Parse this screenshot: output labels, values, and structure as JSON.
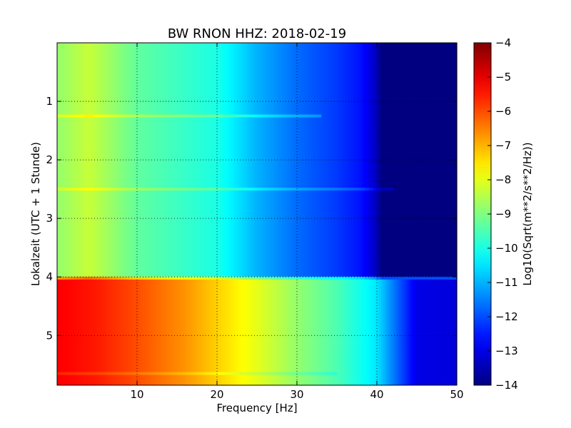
{
  "chart_data": {
    "type": "heatmap",
    "title": "BW RNON HHZ: 2018-02-19",
    "xlabel": "Frequency [Hz]",
    "ylabel": "Lokalzeit (UTC + 1 Stunde)",
    "xlim": [
      0,
      50
    ],
    "ylim": [
      5.85,
      0
    ],
    "x_ticks": [
      10,
      20,
      30,
      40,
      50
    ],
    "y_ticks": [
      1,
      2,
      3,
      4,
      5
    ],
    "grid": true,
    "colormap": "jet",
    "colorbar": {
      "label": "Log10(Sqrt(m**2/s**2/Hz))",
      "range": [
        -14,
        -4
      ],
      "ticks": [
        -4,
        -5,
        -6,
        -7,
        -8,
        -9,
        -10,
        -11,
        -12,
        -13,
        -14
      ]
    },
    "regions": [
      {
        "y_range": [
          0,
          4.02
        ],
        "profile": [
          {
            "f": 0,
            "v": -8.8
          },
          {
            "f": 4,
            "v": -8.3
          },
          {
            "f": 10,
            "v": -9.3
          },
          {
            "f": 20,
            "v": -10.0
          },
          {
            "f": 25,
            "v": -11.0
          },
          {
            "f": 30,
            "v": -11.7
          },
          {
            "f": 35,
            "v": -12.2
          },
          {
            "f": 38,
            "v": -12.6
          },
          {
            "f": 40,
            "v": -13.4
          },
          {
            "f": 40.5,
            "v": -14
          },
          {
            "f": 50,
            "v": -14
          }
        ]
      },
      {
        "y_range": [
          4.02,
          5.85
        ],
        "profile": [
          {
            "f": 0,
            "v": -5.2
          },
          {
            "f": 5,
            "v": -5.5
          },
          {
            "f": 10,
            "v": -6.0
          },
          {
            "f": 16,
            "v": -6.7
          },
          {
            "f": 20,
            "v": -7.3
          },
          {
            "f": 25,
            "v": -8.0
          },
          {
            "f": 30,
            "v": -8.8
          },
          {
            "f": 35,
            "v": -9.5
          },
          {
            "f": 40,
            "v": -10.5
          },
          {
            "f": 43,
            "v": -12.0
          },
          {
            "f": 45,
            "v": -13.0
          },
          {
            "f": 50,
            "v": -13.1
          }
        ]
      }
    ],
    "bands": [
      {
        "y": 1.25,
        "dv": 0.7,
        "f_max": 33
      },
      {
        "y": 2.5,
        "dv": 0.6,
        "f_max": 42
      },
      {
        "y": 4.02,
        "dv": 2.0,
        "f_max": 50
      },
      {
        "y": 5.65,
        "dv": -0.4,
        "f_max": 35
      }
    ]
  }
}
